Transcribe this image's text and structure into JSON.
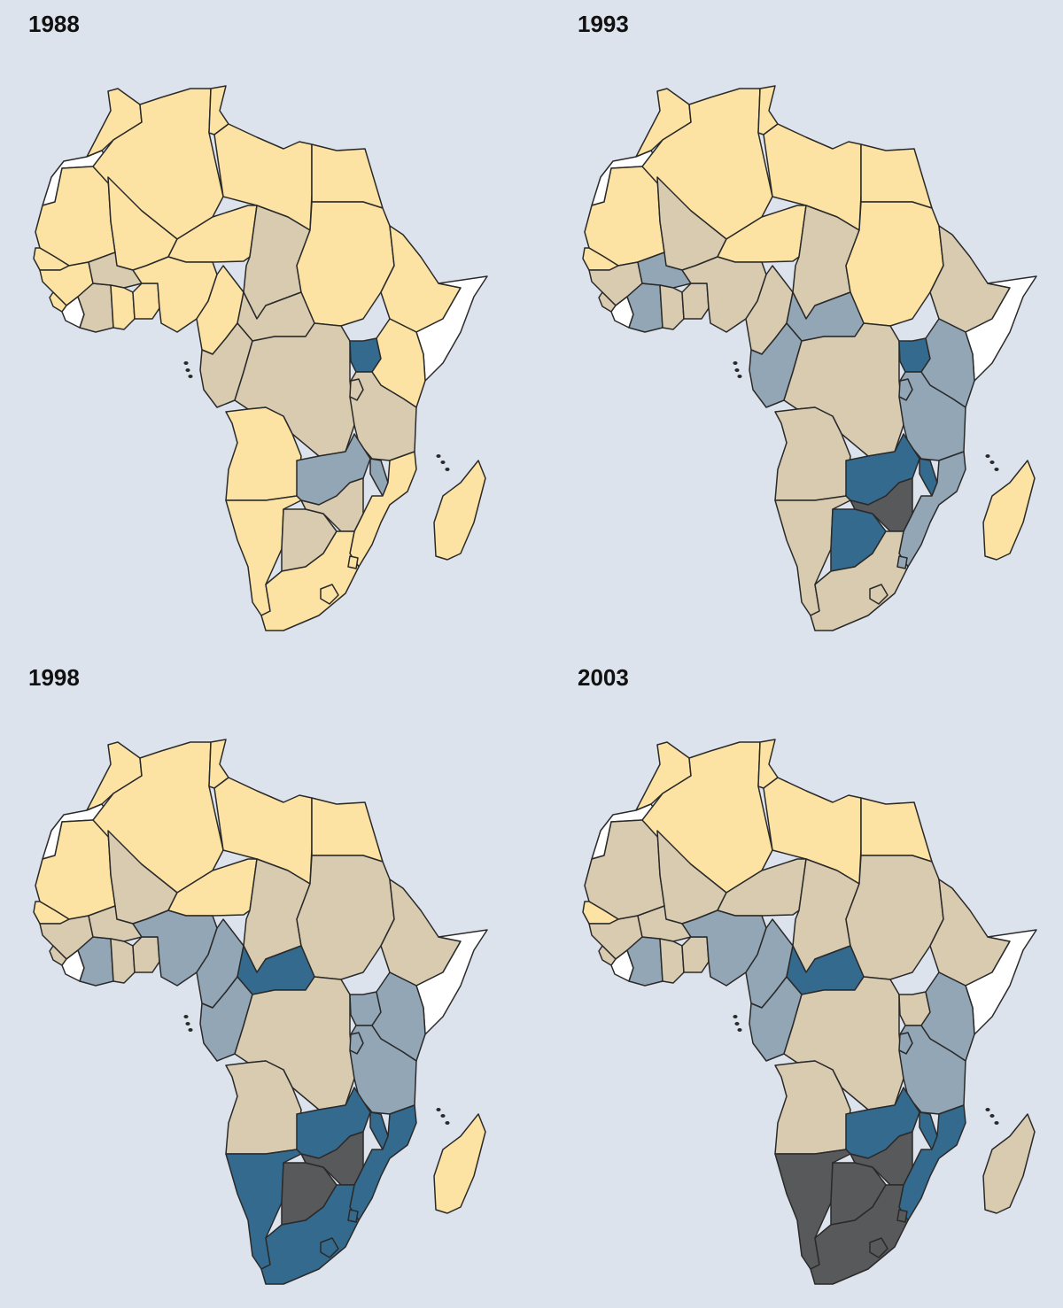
{
  "colors": {
    "background": "#dde3ec",
    "no_data": "#ffffff",
    "level_0": "#fde3a3",
    "level_1": "#d8cbb0",
    "level_2": "#92a6b6",
    "level_3": "#346a8e",
    "level_4": "#58595b",
    "border": "#2a2a2a"
  },
  "panels": [
    {
      "year": "1988",
      "regions": {
        "morocco": "level_0",
        "western_sahara": "no_data",
        "mauritania": "level_0",
        "algeria": "level_0",
        "tunisia": "level_0",
        "libya": "level_0",
        "egypt": "level_0",
        "mali": "level_0",
        "niger": "level_0",
        "chad": "level_1",
        "sudan": "level_0",
        "senegal": "level_0",
        "guinea": "level_0",
        "sierra_leone": "level_0",
        "liberia": "no_data",
        "cote_divoire": "level_1",
        "burkina_faso": "level_1",
        "ghana": "level_0",
        "togo_benin": "level_0",
        "nigeria": "level_0",
        "cameroon": "level_0",
        "car": "level_1",
        "ethiopia": "level_0",
        "somalia": "no_data",
        "gabon_congo": "level_1",
        "drc": "level_1",
        "uganda": "level_3",
        "kenya": "level_0",
        "rwanda_burundi": "level_1",
        "tanzania": "level_1",
        "angola": "level_0",
        "zambia": "level_2",
        "malawi": "level_2",
        "mozambique": "level_0",
        "namibia": "level_0",
        "botswana": "level_1",
        "zimbabwe": "level_1",
        "south_africa": "level_0",
        "lesotho": "level_0",
        "swaziland": "level_0",
        "madagascar": "level_0"
      }
    },
    {
      "year": "1993",
      "regions": {
        "morocco": "level_0",
        "western_sahara": "no_data",
        "mauritania": "level_0",
        "algeria": "level_0",
        "tunisia": "level_0",
        "libya": "level_0",
        "egypt": "level_0",
        "mali": "level_1",
        "niger": "level_0",
        "chad": "level_1",
        "sudan": "level_0",
        "senegal": "level_0",
        "guinea": "level_1",
        "sierra_leone": "level_1",
        "liberia": "no_data",
        "cote_divoire": "level_2",
        "burkina_faso": "level_2",
        "ghana": "level_1",
        "togo_benin": "level_1",
        "nigeria": "level_1",
        "cameroon": "level_1",
        "car": "level_2",
        "ethiopia": "level_1",
        "somalia": "no_data",
        "gabon_congo": "level_2",
        "drc": "level_1",
        "uganda": "level_3",
        "kenya": "level_2",
        "rwanda_burundi": "level_2",
        "tanzania": "level_2",
        "angola": "level_1",
        "zambia": "level_3",
        "malawi": "level_3",
        "mozambique": "level_2",
        "namibia": "level_1",
        "botswana": "level_3",
        "zimbabwe": "level_4",
        "south_africa": "level_1",
        "lesotho": "level_1",
        "swaziland": "level_2",
        "madagascar": "level_0"
      }
    },
    {
      "year": "1998",
      "regions": {
        "morocco": "level_0",
        "western_sahara": "no_data",
        "mauritania": "level_0",
        "algeria": "level_0",
        "tunisia": "level_0",
        "libya": "level_0",
        "egypt": "level_0",
        "mali": "level_1",
        "niger": "level_0",
        "chad": "level_1",
        "sudan": "level_1",
        "senegal": "level_0",
        "guinea": "level_1",
        "sierra_leone": "level_1",
        "liberia": "no_data",
        "cote_divoire": "level_2",
        "burkina_faso": "level_1",
        "ghana": "level_1",
        "togo_benin": "level_1",
        "nigeria": "level_2",
        "cameroon": "level_2",
        "car": "level_3",
        "ethiopia": "level_1",
        "somalia": "no_data",
        "gabon_congo": "level_2",
        "drc": "level_1",
        "uganda": "level_2",
        "kenya": "level_2",
        "rwanda_burundi": "level_2",
        "tanzania": "level_2",
        "angola": "level_1",
        "zambia": "level_3",
        "malawi": "level_3",
        "mozambique": "level_3",
        "namibia": "level_3",
        "botswana": "level_4",
        "zimbabwe": "level_4",
        "south_africa": "level_3",
        "lesotho": "level_3",
        "swaziland": "level_3",
        "madagascar": "level_0"
      }
    },
    {
      "year": "2003",
      "regions": {
        "morocco": "level_0",
        "western_sahara": "no_data",
        "mauritania": "level_1",
        "algeria": "level_0",
        "tunisia": "level_0",
        "libya": "level_0",
        "egypt": "level_0",
        "mali": "level_1",
        "niger": "level_1",
        "chad": "level_1",
        "sudan": "level_1",
        "senegal": "level_0",
        "guinea": "level_1",
        "sierra_leone": "level_1",
        "liberia": "no_data",
        "cote_divoire": "level_2",
        "burkina_faso": "level_1",
        "ghana": "level_1",
        "togo_benin": "level_1",
        "nigeria": "level_2",
        "cameroon": "level_2",
        "car": "level_3",
        "ethiopia": "level_1",
        "somalia": "no_data",
        "gabon_congo": "level_2",
        "drc": "level_1",
        "uganda": "level_1",
        "kenya": "level_2",
        "rwanda_burundi": "level_2",
        "tanzania": "level_2",
        "angola": "level_1",
        "zambia": "level_3",
        "malawi": "level_3",
        "mozambique": "level_3",
        "namibia": "level_4",
        "botswana": "level_4",
        "zimbabwe": "level_4",
        "south_africa": "level_4",
        "lesotho": "level_4",
        "swaziland": "level_4",
        "madagascar": "level_1"
      }
    }
  ]
}
